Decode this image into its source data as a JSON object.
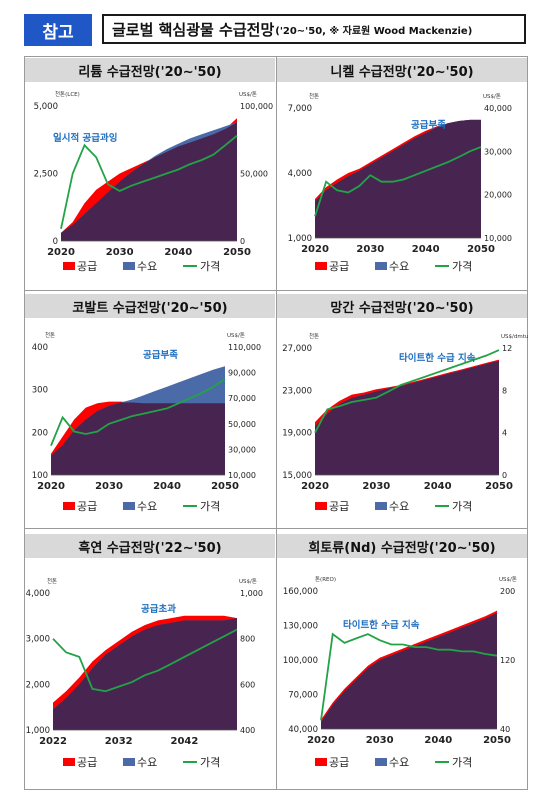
{
  "header": {
    "tag": "참고",
    "title": "글로벌 핵심광물 수급전망",
    "subtitle": "('20∼'50, ※ 자료원 Wood Mackenzie)"
  },
  "colors": {
    "supply": "#ff0000",
    "demand": "#4a6aa8",
    "overlap": "#482451",
    "price": "#22a347",
    "annotation": "#1f6fbf",
    "title_band": "#d9d9d9"
  },
  "chart_data": [
    {
      "type": "area",
      "title": "리튬 수급전망('20∼'50)",
      "ylabel": "천톤(LCE)",
      "y2label": "US$/톤",
      "x": [
        2020,
        2022,
        2024,
        2026,
        2028,
        2030,
        2032,
        2034,
        2036,
        2038,
        2040,
        2042,
        2044,
        2046,
        2048,
        2050
      ],
      "xticks": [
        "2020",
        "2030",
        "2040",
        "2050"
      ],
      "yticks": [
        "0",
        "2,500",
        "5,000"
      ],
      "y2ticks": [
        "0",
        "50,000",
        "100,000"
      ],
      "ylim": [
        0,
        5000
      ],
      "y2lim": [
        0,
        100000
      ],
      "annotation": "일시적 공급과잉",
      "series": [
        {
          "name": "공급",
          "values": [
            300,
            700,
            1400,
            1900,
            2200,
            2500,
            2700,
            2900,
            3100,
            3300,
            3500,
            3650,
            3800,
            3950,
            4150,
            4550
          ]
        },
        {
          "name": "수요",
          "values": [
            300,
            600,
            1000,
            1400,
            1800,
            2200,
            2550,
            2850,
            3150,
            3400,
            3600,
            3800,
            3950,
            4100,
            4250,
            4400
          ]
        },
        {
          "name": "가격",
          "axis": "y2",
          "values": [
            9000,
            50000,
            71000,
            62000,
            42000,
            37000,
            41000,
            44000,
            47000,
            50000,
            53000,
            57000,
            60000,
            64000,
            71000,
            78000
          ]
        }
      ]
    },
    {
      "type": "area",
      "title": "니켈 수급전망('20∼'50)",
      "ylabel": "천톤",
      "y2label": "US$/톤",
      "x": [
        2020,
        2022,
        2024,
        2026,
        2028,
        2030,
        2032,
        2034,
        2036,
        2038,
        2040,
        2042,
        2044,
        2046,
        2048,
        2050
      ],
      "xticks": [
        "2020",
        "2030",
        "2040",
        "2050"
      ],
      "yticks": [
        "1,000",
        "4,000",
        "7,000"
      ],
      "y2ticks": [
        "10,000",
        "20,000",
        "30,000",
        "40,000"
      ],
      "ylim": [
        1000,
        7000
      ],
      "y2lim": [
        10000,
        40000
      ],
      "annotation": "공급부족",
      "series": [
        {
          "name": "공급",
          "values": [
            2800,
            3350,
            3700,
            4000,
            4200,
            4500,
            4800,
            5100,
            5400,
            5700,
            5950,
            6150,
            6300,
            6400,
            6450,
            6450
          ]
        },
        {
          "name": "수요",
          "values": [
            2700,
            3200,
            3550,
            3850,
            4100,
            4400,
            4700,
            5000,
            5300,
            5600,
            5850,
            6100,
            6300,
            6400,
            6450,
            6450
          ]
        },
        {
          "name": "가격",
          "axis": "y2",
          "values": [
            15000,
            23000,
            21000,
            20500,
            22000,
            24500,
            23000,
            23000,
            23500,
            24500,
            25500,
            26500,
            27500,
            28700,
            30000,
            31000
          ]
        }
      ]
    },
    {
      "type": "area",
      "title": "코발트 수급전망('20∼'50)",
      "ylabel": "천톤",
      "y2label": "US$/톤",
      "x": [
        2020,
        2022,
        2024,
        2026,
        2028,
        2030,
        2032,
        2034,
        2036,
        2038,
        2040,
        2042,
        2044,
        2046,
        2048,
        2050
      ],
      "xticks": [
        "2020",
        "2030",
        "2040",
        "2050"
      ],
      "yticks": [
        "100",
        "200",
        "300",
        "400"
      ],
      "y2ticks": [
        "10,000",
        "30,000",
        "50,000",
        "70,000",
        "90,000",
        "110,000"
      ],
      "ylim": [
        100,
        400
      ],
      "y2lim": [
        10000,
        110000
      ],
      "annotation": "공급부족",
      "series": [
        {
          "name": "공급",
          "values": [
            150,
            190,
            230,
            258,
            268,
            272,
            272,
            270,
            268,
            268,
            268,
            268,
            268,
            268,
            268,
            268
          ]
        },
        {
          "name": "수요",
          "values": [
            145,
            170,
            205,
            230,
            250,
            262,
            270,
            277,
            287,
            297,
            307,
            317,
            327,
            337,
            347,
            355
          ]
        },
        {
          "name": "가격",
          "axis": "y2",
          "values": [
            33000,
            55000,
            44000,
            42000,
            44000,
            50000,
            53000,
            56000,
            58000,
            60000,
            62000,
            66000,
            70000,
            74000,
            79000,
            85000
          ]
        }
      ]
    },
    {
      "type": "area",
      "title": "망간 수급전망('20∼'50)",
      "ylabel": "천톤",
      "y2label": "US$/dmtu",
      "x": [
        2020,
        2022,
        2024,
        2026,
        2028,
        2030,
        2032,
        2034,
        2036,
        2038,
        2040,
        2042,
        2044,
        2046,
        2048,
        2050
      ],
      "xticks": [
        "2020",
        "2030",
        "2040",
        "2050"
      ],
      "yticks": [
        "15,000",
        "19,000",
        "23,000",
        "27,000"
      ],
      "y2ticks": [
        "0",
        "4",
        "8",
        "12"
      ],
      "ylim": [
        15000,
        27000
      ],
      "y2lim": [
        0,
        12
      ],
      "annotation": "타이트한 수급 지속",
      "series": [
        {
          "name": "공급",
          "values": [
            20000,
            21200,
            22000,
            22600,
            22800,
            23100,
            23300,
            23500,
            23800,
            24100,
            24400,
            24700,
            25000,
            25300,
            25600,
            25900
          ]
        },
        {
          "name": "수요",
          "values": [
            19600,
            20800,
            21700,
            22300,
            22600,
            22900,
            23200,
            23400,
            23700,
            24000,
            24300,
            24600,
            24900,
            25200,
            25500,
            25800
          ]
        },
        {
          "name": "가격",
          "axis": "y2",
          "values": [
            4,
            6.2,
            6.5,
            6.9,
            7.1,
            7.3,
            7.9,
            8.5,
            8.9,
            9.3,
            9.7,
            10.1,
            10.5,
            10.9,
            11.3,
            11.8
          ]
        }
      ]
    },
    {
      "type": "area",
      "title": "흑연 수급전망('22∼'50)",
      "ylabel": "천톤",
      "y2label": "US$/톤",
      "x": [
        2022,
        2024,
        2026,
        2028,
        2030,
        2032,
        2034,
        2036,
        2038,
        2040,
        2042,
        2044,
        2046,
        2048,
        2050
      ],
      "xticks": [
        "2022",
        "2032",
        "2042"
      ],
      "yticks": [
        "1,000",
        "2,000",
        "3,000",
        "4,000"
      ],
      "y2ticks": [
        "400",
        "600",
        "800",
        "1,000"
      ],
      "ylim": [
        1000,
        4000
      ],
      "y2lim": [
        400,
        1000
      ],
      "annotation": "공급초과",
      "series": [
        {
          "name": "공급",
          "values": [
            1600,
            1850,
            2150,
            2500,
            2750,
            2950,
            3150,
            3300,
            3400,
            3450,
            3500,
            3500,
            3500,
            3500,
            3450
          ]
        },
        {
          "name": "수요",
          "values": [
            1450,
            1700,
            2000,
            2350,
            2650,
            2850,
            3050,
            3200,
            3300,
            3350,
            3400,
            3400,
            3400,
            3400,
            3450
          ]
        },
        {
          "name": "가격",
          "axis": "y2",
          "values": [
            800,
            740,
            720,
            580,
            570,
            590,
            610,
            640,
            660,
            690,
            720,
            750,
            780,
            810,
            840
          ]
        }
      ]
    },
    {
      "type": "area",
      "title": "희토류(Nd) 수급전망('20∼'50)",
      "ylabel": "톤(REO)",
      "y2label": "US$/톤",
      "x": [
        2020,
        2022,
        2024,
        2026,
        2028,
        2030,
        2032,
        2034,
        2036,
        2038,
        2040,
        2042,
        2044,
        2046,
        2048,
        2050
      ],
      "xticks": [
        "2020",
        "2030",
        "2040",
        "2050"
      ],
      "yticks": [
        "40,000",
        "70,000",
        "100,000",
        "130,000",
        "160,000"
      ],
      "y2ticks": [
        "40",
        "120",
        "200"
      ],
      "ylim": [
        40000,
        160000
      ],
      "y2lim": [
        40,
        200
      ],
      "annotation": "타이트한 수급 지속",
      "series": [
        {
          "name": "공급",
          "values": [
            48000,
            63000,
            75000,
            85000,
            95000,
            102000,
            106000,
            110000,
            114000,
            118000,
            122000,
            126000,
            130000,
            134000,
            138000,
            143000
          ]
        },
        {
          "name": "수요",
          "values": [
            46000,
            61000,
            73000,
            83000,
            93000,
            100000,
            104000,
            108000,
            112000,
            116000,
            120000,
            124000,
            128000,
            132000,
            136000,
            141000
          ]
        },
        {
          "name": "가격",
          "axis": "y2",
          "values": [
            50,
            150,
            140,
            145,
            150,
            143,
            138,
            138,
            135,
            135,
            132,
            132,
            130,
            130,
            127,
            125
          ]
        }
      ]
    }
  ],
  "legend": {
    "supply": "공급",
    "demand": "수요",
    "price": "가격"
  }
}
